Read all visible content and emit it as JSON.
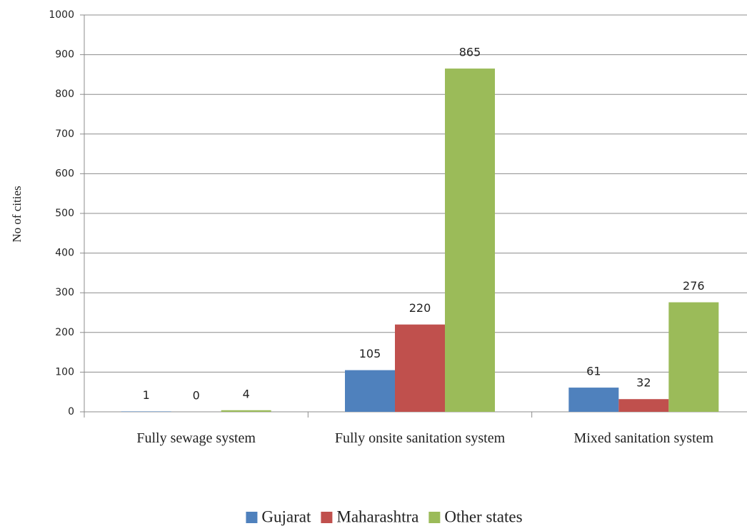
{
  "chart_data": {
    "type": "bar",
    "y_label": "No of cities",
    "categories": [
      "Fully sewage system",
      "Fully onsite sanitation system",
      "Mixed sanitation system"
    ],
    "series": [
      {
        "name": "Gujarat",
        "color": "#4f81bd",
        "values": [
          1,
          105,
          61
        ]
      },
      {
        "name": "Maharashtra",
        "color": "#c0504d",
        "values": [
          0,
          220,
          32
        ]
      },
      {
        "name": "Other states",
        "color": "#9bbb59",
        "values": [
          4,
          865,
          276
        ]
      }
    ],
    "ylim": [
      0,
      1000
    ],
    "yticks": [
      0,
      100,
      200,
      300,
      400,
      500,
      600,
      700,
      800,
      900,
      1000
    ],
    "grid": true,
    "legend": "bottom"
  }
}
